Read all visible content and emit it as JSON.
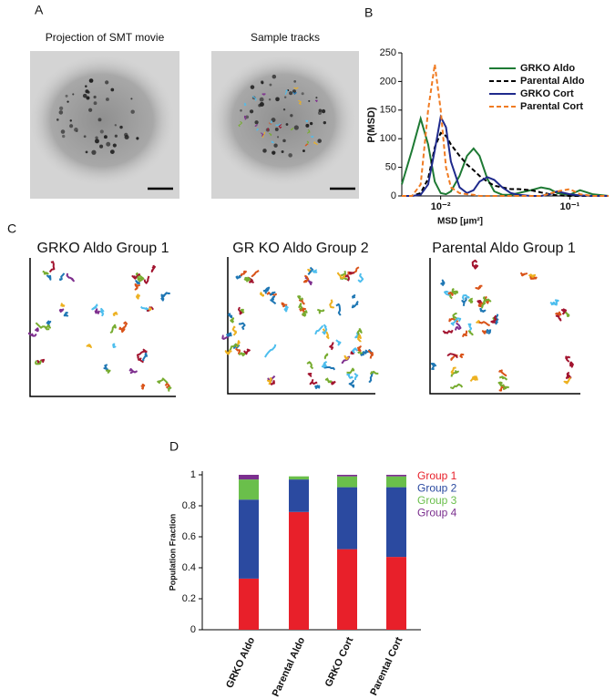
{
  "panel_labels": [
    "A",
    "B",
    "C",
    "D"
  ],
  "panel_a": {
    "titles": [
      "Projection of SMT movie",
      "Sample tracks"
    ]
  },
  "panel_c": {
    "titles": [
      "GRKO Aldo Group 1",
      "GR KO Aldo Group 2",
      "Parental Aldo Group 1"
    ]
  },
  "chart_data": [
    {
      "type": "line",
      "xscale": "log",
      "ylabel": "P(MSD)",
      "xlabel": "MSD [μm²]",
      "x": [
        0.005,
        0.006,
        0.007,
        0.008,
        0.009,
        0.01,
        0.011,
        0.012,
        0.014,
        0.016,
        0.018,
        0.02,
        0.023,
        0.026,
        0.03,
        0.035,
        0.04,
        0.05,
        0.06,
        0.07,
        0.08,
        0.1,
        0.12,
        0.15,
        0.2
      ],
      "xlim": [
        0.005,
        0.2
      ],
      "xticks": [
        {
          "value": 0.01,
          "label": "10⁻²"
        },
        {
          "value": 0.1,
          "label": "10⁻¹"
        }
      ],
      "ylim": [
        0,
        250
      ],
      "yticks": [
        0,
        50,
        100,
        150,
        200,
        250
      ],
      "series": [
        {
          "name": "GRKO Aldo",
          "color": "#1e7a34",
          "dashed": false,
          "values": [
            20,
            80,
            135,
            90,
            25,
            5,
            3,
            8,
            35,
            70,
            83,
            70,
            30,
            8,
            2,
            2,
            5,
            10,
            15,
            12,
            5,
            2,
            10,
            3,
            0
          ]
        },
        {
          "name": "Parental Aldo",
          "color": "#000000",
          "dashed": true,
          "values": [
            0,
            0,
            5,
            30,
            85,
            110,
            105,
            90,
            70,
            55,
            45,
            35,
            25,
            18,
            15,
            12,
            12,
            10,
            6,
            3,
            1,
            0,
            0,
            0,
            0
          ]
        },
        {
          "name": "GRKO Cort",
          "color": "#1f2a8c",
          "dashed": false,
          "values": [
            0,
            0,
            2,
            20,
            80,
            138,
            120,
            60,
            15,
            5,
            10,
            25,
            33,
            28,
            15,
            5,
            2,
            0,
            0,
            3,
            8,
            3,
            1,
            0,
            0
          ]
        },
        {
          "name": "Parental Cort",
          "color": "#f07b22",
          "dashed": true,
          "values": [
            0,
            0,
            20,
            150,
            230,
            150,
            50,
            15,
            5,
            3,
            2,
            0,
            0,
            0,
            0,
            0,
            0,
            0,
            0,
            4,
            8,
            12,
            3,
            0,
            0
          ]
        }
      ]
    },
    {
      "type": "bar",
      "stacked": true,
      "ylabel": "Population Fraction",
      "categories": [
        "GRKO Aldo",
        "Parental Aldo",
        "GRKO Cort",
        "Parental Cort"
      ],
      "ylim": [
        0,
        1
      ],
      "yticks": [
        0,
        0.2,
        0.4,
        0.6,
        0.8,
        1
      ],
      "series": [
        {
          "name": "Group 1",
          "color": "#e8202a",
          "values": [
            0.33,
            0.76,
            0.52,
            0.47
          ]
        },
        {
          "name": "Group 2",
          "color": "#2b4aa0",
          "values": [
            0.51,
            0.21,
            0.4,
            0.45
          ]
        },
        {
          "name": "Group 3",
          "color": "#6abf4b",
          "values": [
            0.13,
            0.02,
            0.07,
            0.07
          ]
        },
        {
          "name": "Group 4",
          "color": "#7b2f8e",
          "values": [
            0.03,
            0,
            0.01,
            0.01
          ]
        }
      ]
    }
  ]
}
